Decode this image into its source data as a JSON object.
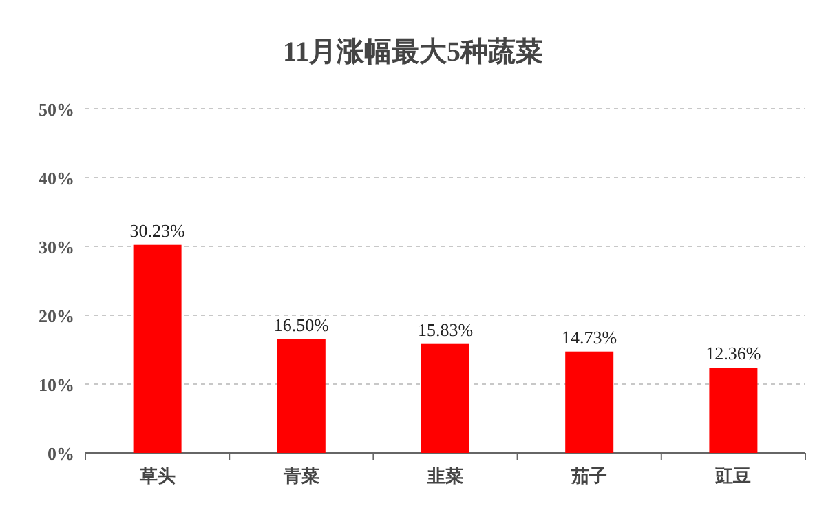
{
  "chart_data": {
    "type": "bar",
    "title": "11月涨幅最大5种蔬菜",
    "categories": [
      "草头",
      "青菜",
      "韭菜",
      "茄子",
      "豇豆"
    ],
    "values": [
      30.23,
      16.5,
      15.83,
      14.73,
      12.36
    ],
    "value_labels": [
      "30.23%",
      "16.50%",
      "15.83%",
      "14.73%",
      "12.36%"
    ],
    "color": "#ff0000",
    "ylim": [
      0,
      50
    ],
    "yticks": [
      {
        "value": 0,
        "label": "0%"
      },
      {
        "value": 10,
        "label": "10%"
      },
      {
        "value": 20,
        "label": "20%"
      },
      {
        "value": 30,
        "label": "30%"
      },
      {
        "value": 40,
        "label": "40%"
      },
      {
        "value": 50,
        "label": "50%"
      }
    ],
    "grid": "y"
  }
}
